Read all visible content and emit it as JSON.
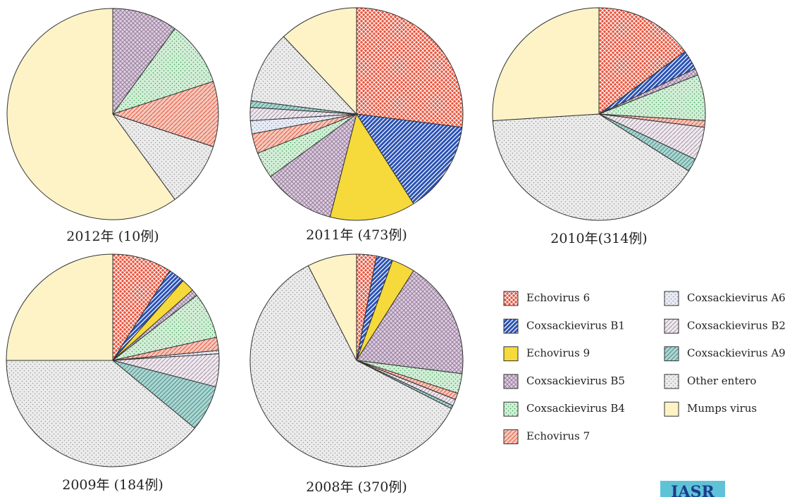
{
  "legend": {
    "labels": [
      "Echovirus 6",
      "Coxsackievirus B1",
      "Echovirus 9",
      "Coxsackievirus B5",
      "Coxsackievirus B4",
      "Echovirus 7",
      "Coxsackievirus A6",
      "Coxsackievirus B2",
      "Coxsackievirus A9",
      "Other entero",
      "Mumps virus"
    ],
    "colors": [
      "#e8553d",
      "#2a52b5",
      "#f6d93a",
      "#e2cbe6",
      "#d3eed7",
      "#f4c9bd",
      "#e6ebf6",
      "#f1e8f1",
      "#a6dbd6",
      "#ececec",
      "#fdf3c6"
    ]
  },
  "chart_data": [
    {
      "type": "pie",
      "title": "2012年 (10例)",
      "values": [
        0,
        0,
        0,
        10,
        10,
        10,
        0,
        0,
        0,
        10,
        60
      ]
    },
    {
      "type": "pie",
      "title": "2011年 (473例)",
      "values": [
        27,
        14,
        13,
        11,
        4,
        3,
        2,
        2,
        1,
        11,
        12
      ]
    },
    {
      "type": "pie",
      "title": "2010年(314例)",
      "values": [
        15,
        3,
        0,
        1,
        7,
        1,
        0,
        5,
        2,
        40,
        26
      ]
    },
    {
      "type": "pie",
      "title": "2009年 (184例)",
      "values": [
        9,
        2.5,
        2,
        1,
        7,
        2,
        0.5,
        5,
        7,
        39,
        25
      ]
    },
    {
      "type": "pie",
      "title": "2008年 (370例)",
      "values": [
        3,
        2.5,
        3.5,
        18,
        3,
        1,
        0,
        1,
        0.5,
        60,
        7.5
      ]
    }
  ],
  "logo": "IASR"
}
